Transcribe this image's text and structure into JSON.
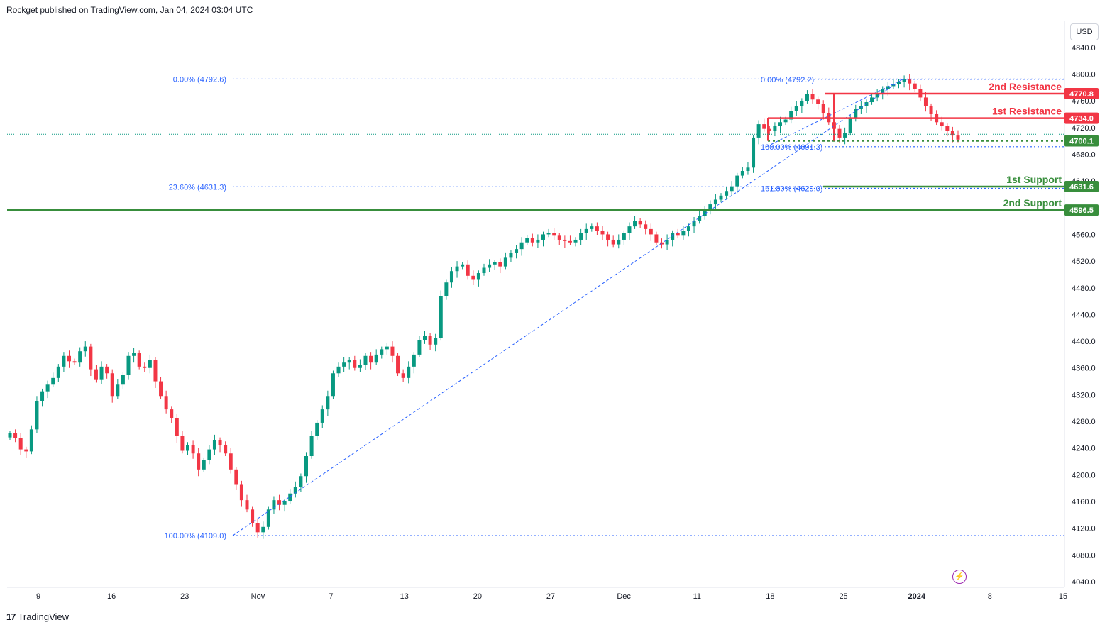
{
  "header": {
    "publisher": "Rockget published on TradingView.com, Jan 04, 2024 03:04 UTC"
  },
  "currency": "USD",
  "brand": {
    "logo_icon": "tradingview-logo-icon",
    "name": "TradingView"
  },
  "colors": {
    "up": "#089981",
    "down": "#f23645",
    "resistance": "#f23645",
    "support": "#388e3c",
    "fib": "#2962ff",
    "axis_text": "#131722"
  },
  "chart_data": {
    "type": "candlestick",
    "title": "",
    "ylim": [
      4040,
      4860
    ],
    "grid": false,
    "y_ticks": [
      "4840.0",
      "4800.0",
      "4760.0",
      "4720.0",
      "4680.0",
      "4640.0",
      "4600.0",
      "4560.0",
      "4520.0",
      "4480.0",
      "4440.0",
      "4400.0",
      "4360.0",
      "4320.0",
      "4280.0",
      "4240.0",
      "4200.0",
      "4160.0",
      "4120.0",
      "4080.0",
      "4040.0"
    ],
    "x_ticks": [
      "9",
      "16",
      "23",
      "Nov",
      "7",
      "13",
      "20",
      "27",
      "Dec",
      "11",
      "18",
      "25",
      "2024",
      "8",
      "15"
    ],
    "price_labels": [
      {
        "text": "4770.8",
        "value": 4770.8,
        "color": "#f23645"
      },
      {
        "text": "4734.0",
        "value": 4734.0,
        "color": "#f23645"
      },
      {
        "text": "4700.1",
        "value": 4700.1,
        "color": "#388e3c"
      },
      {
        "text": "4631.6",
        "value": 4631.6,
        "color": "#388e3c"
      },
      {
        "text": "4596.5",
        "value": 4596.5,
        "color": "#388e3c"
      }
    ],
    "annotations": [
      {
        "text": "2nd Resistance",
        "value": 4770.8,
        "color": "#f23645"
      },
      {
        "text": "1st Resistance",
        "value": 4734.0,
        "color": "#f23645"
      },
      {
        "text": "1st Support",
        "value": 4631.6,
        "color": "#388e3c"
      },
      {
        "text": "2nd Support",
        "value": 4596.5,
        "color": "#388e3c"
      }
    ],
    "fib_left": [
      {
        "text": "0.00% (4792.6)",
        "value": 4792.6
      },
      {
        "text": "23.60% (4631.3)",
        "value": 4631.3
      },
      {
        "text": "100.00% (4109.0)",
        "value": 4109.0
      }
    ],
    "fib_right": [
      {
        "text": "0.00% (4792.2)",
        "value": 4792.2
      },
      {
        "text": "100.00% (4691.3)",
        "value": 4691.3
      },
      {
        "text": "161.80% (4629.0)",
        "value": 4629.0
      }
    ],
    "series": [
      {
        "name": "",
        "close": [
          4262,
          4255,
          4238,
          4235,
          4268,
          4310,
          4325,
          4335,
          4345,
          4362,
          4378,
          4370,
          4368,
          4385,
          4392,
          4358,
          4342,
          4362,
          4352,
          4318,
          4335,
          4350,
          4378,
          4382,
          4362,
          4360,
          4372,
          4340,
          4318,
          4298,
          4285,
          4258,
          4236,
          4245,
          4232,
          4208,
          4222,
          4238,
          4252,
          4244,
          4232,
          4208,
          4185,
          4162,
          4148,
          4128,
          4114,
          4122,
          4148,
          4162,
          4155,
          4160,
          4172,
          4182,
          4198,
          4228,
          4258,
          4278,
          4298,
          4318,
          4352,
          4362,
          4368,
          4372,
          4360,
          4365,
          4378,
          4368,
          4380,
          4388,
          4392,
          4378,
          4352,
          4345,
          4362,
          4380,
          4402,
          4408,
          4395,
          4405,
          4468,
          4488,
          4505,
          4512,
          4515,
          4498,
          4492,
          4502,
          4510,
          4515,
          4518,
          4512,
          4525,
          4532,
          4538,
          4548,
          4555,
          4548,
          4552,
          4560,
          4562,
          4558,
          4552,
          4550,
          4548,
          4552,
          4562,
          4568,
          4572,
          4565,
          4560,
          4552,
          4545,
          4552,
          4562,
          4572,
          4580,
          4575,
          4568,
          4560,
          4548,
          4545,
          4552,
          4562,
          4558,
          4565,
          4572,
          4580,
          4588,
          4598,
          4605,
          4612,
          4618,
          4625,
          4632,
          4648,
          4655,
          4660,
          4705,
          4725,
          4718,
          4715,
          4722,
          4728,
          4732,
          4745,
          4752,
          4760,
          4770,
          4762,
          4755,
          4742,
          4728,
          4718,
          4705,
          4712,
          4735,
          4748,
          4752,
          4758,
          4765,
          4770,
          4778,
          4782,
          4785,
          4788,
          4792,
          4786,
          4778,
          4765,
          4752,
          4740,
          4728,
          4722,
          4715,
          4708,
          4702
        ]
      }
    ]
  }
}
